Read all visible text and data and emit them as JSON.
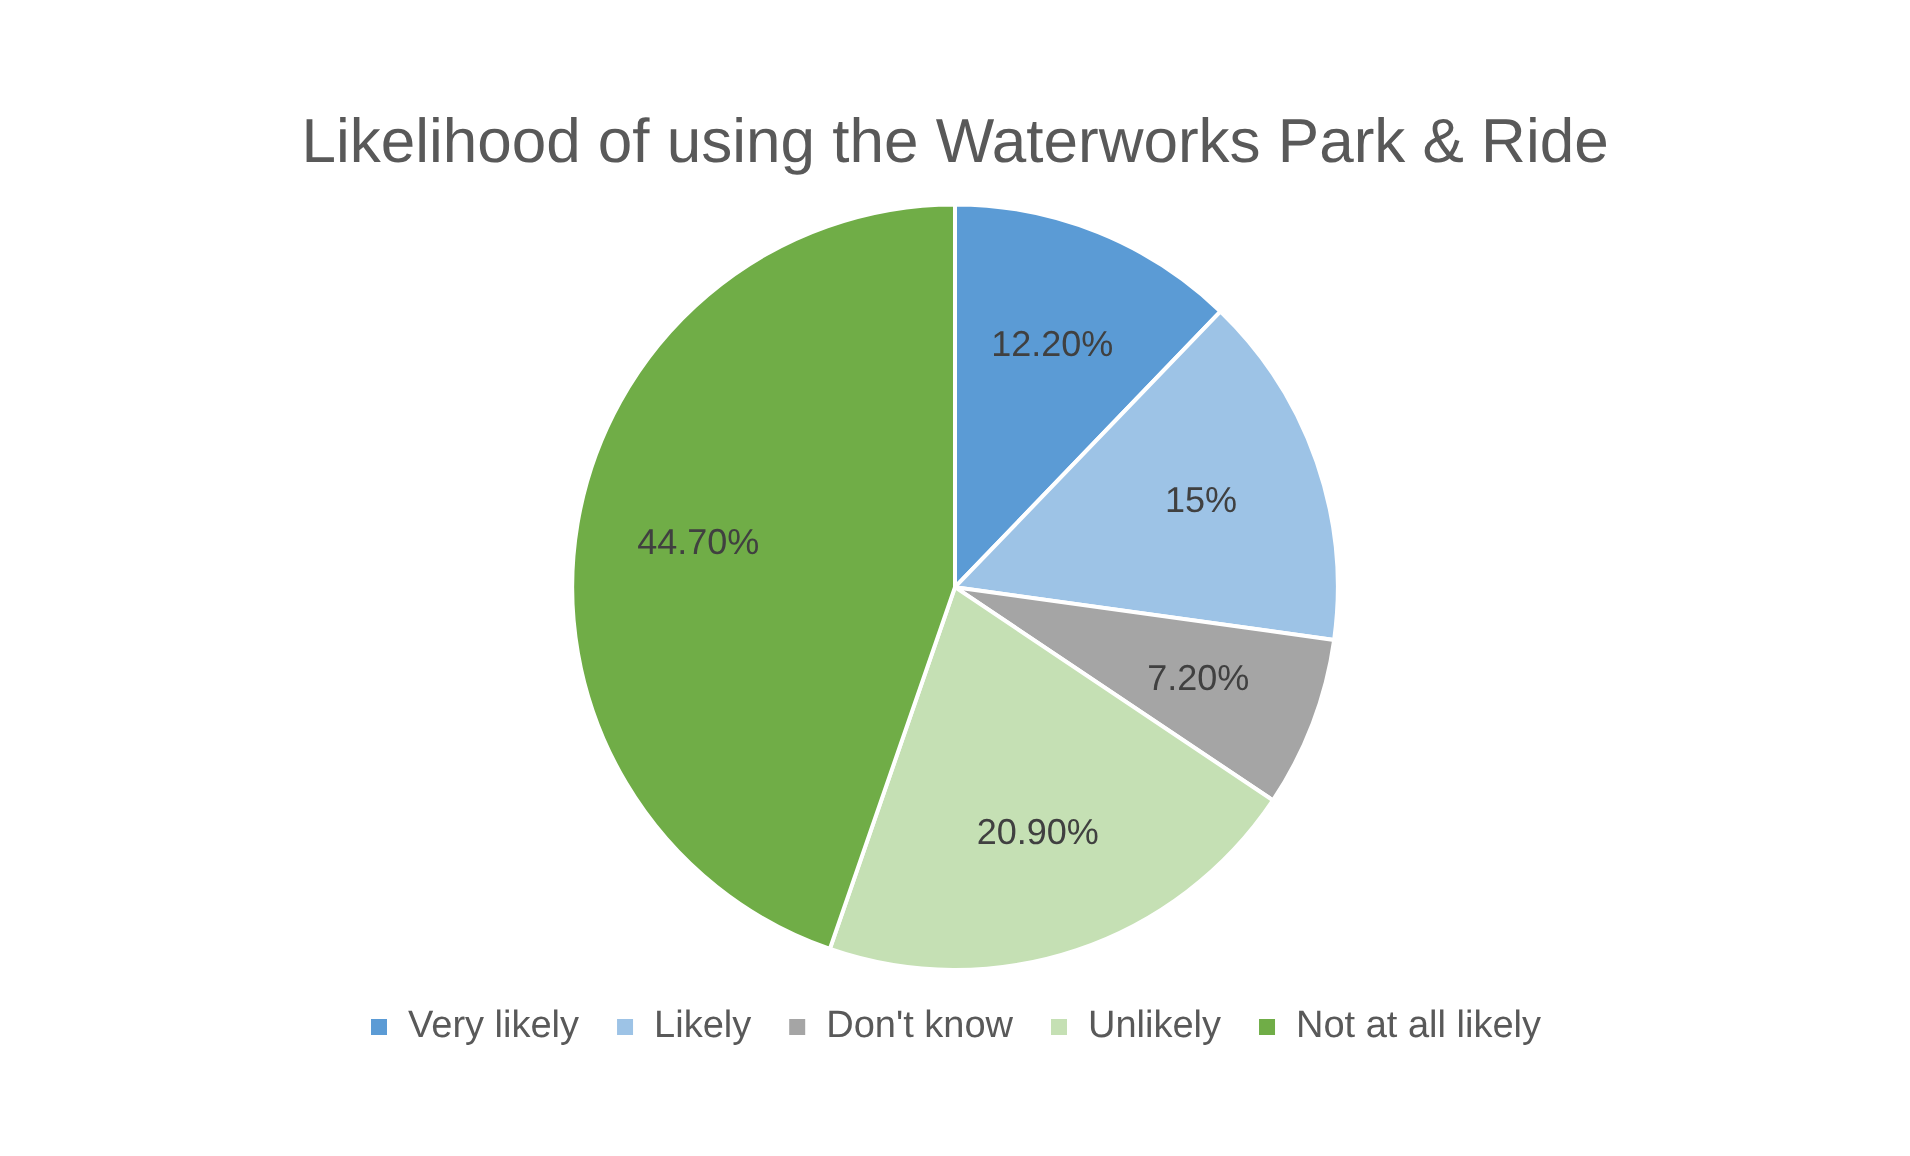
{
  "chart_data": {
    "type": "pie",
    "title": "Likelihood of using the Waterworks Park & Ride",
    "categories": [
      "Very likely",
      "Likely",
      "Don't know",
      "Unlikely",
      "Not at all likely"
    ],
    "values": [
      12.2,
      15,
      7.2,
      20.9,
      44.7
    ],
    "value_labels": [
      "12.20%",
      "15%",
      "7.20%",
      "20.90%",
      "44.70%"
    ],
    "colors": [
      "#5b9bd5",
      "#9dc3e6",
      "#a5a5a5",
      "#c5e0b4",
      "#70ad47"
    ],
    "legend": "bottom"
  }
}
